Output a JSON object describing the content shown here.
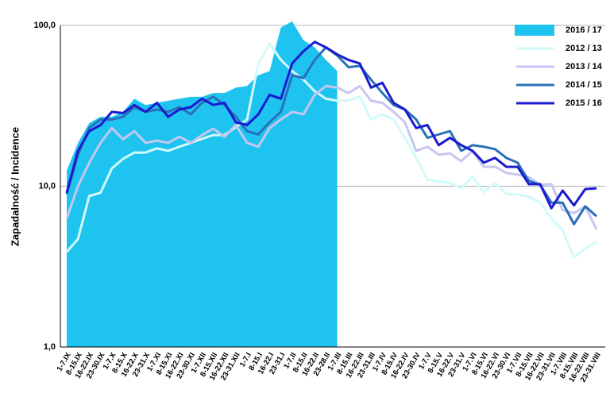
{
  "chart_data": {
    "type": "line",
    "log_y": true,
    "grid": true,
    "legend": "top-right",
    "ylabel": "Zapadalność  /  Incidence",
    "ylim": [
      1,
      100
    ],
    "yticks": [
      {
        "value": 1,
        "label": "1,0"
      },
      {
        "value": 10,
        "label": "10,0"
      },
      {
        "value": 100,
        "label": "100,0"
      }
    ],
    "categories": [
      "1-7.IX",
      "8-15.IX",
      "16-22.IX",
      "23-30.IX",
      "1-7.X",
      "8-15.X",
      "16-22.X",
      "23-31.X",
      "1-7.XI",
      "8-15.XI",
      "16-22.XI",
      "23-30.XI",
      "1-7.XII",
      "8-15.XII",
      "16-22.XII",
      "23-31.XII",
      "1-7.I",
      "8-15.I",
      "16-22.I",
      "23-31.I",
      "1-7.II",
      "8-15.II",
      "16-22.II",
      "23-28.II",
      "1-7.III",
      "8-15.III",
      "16-22.III",
      "23-31.III",
      "1-7.IV",
      "8-15.IV",
      "16-22.IV",
      "23-30.IV",
      "1-7.V",
      "8-15.V",
      "16-22.V",
      "23-31.V",
      "1-7.VI",
      "8-15.VI",
      "16-22.VI",
      "23-30.VI",
      "1-7.VII",
      "8-15.VII",
      "16-22.VII",
      "23-31.VII",
      "1-7.VIII",
      "8-15.VIII",
      "16-22.VIII",
      "23-31.VIII"
    ],
    "series": [
      {
        "name": "2016 / 17",
        "kind": "area",
        "color": "#1ec3f0",
        "values": [
          12.5,
          18.6,
          24.7,
          27,
          27,
          29,
          35,
          32,
          33,
          34,
          35,
          36,
          36,
          38,
          38,
          41,
          42,
          49,
          52,
          97,
          106,
          81,
          73,
          61,
          52,
          null,
          null,
          null,
          null,
          null,
          null,
          null,
          null,
          null,
          null,
          null,
          null,
          null,
          null,
          null,
          null,
          null,
          null,
          null,
          null,
          null,
          null,
          null
        ]
      },
      {
        "name": "2012 / 13",
        "kind": "line",
        "color": "#d2fafa",
        "values": [
          3.9,
          4.7,
          8.7,
          9.1,
          12.9,
          14.8,
          16.2,
          16.2,
          17.2,
          16.6,
          17.6,
          18.6,
          19.7,
          20.8,
          20.8,
          23.3,
          26,
          58,
          77,
          61,
          52,
          46,
          39,
          35,
          34,
          34,
          36,
          26,
          28,
          26,
          20,
          15,
          11,
          10.7,
          10.5,
          9.7,
          11.5,
          9.2,
          10.5,
          8.9,
          8.9,
          8.6,
          7.9,
          6.3,
          5.3,
          3.6,
          4.1,
          4.5
        ]
      },
      {
        "name": "2013 / 14",
        "kind": "line",
        "color": "#c6c6f0",
        "values": [
          6.3,
          10,
          14,
          18.6,
          23,
          19.6,
          22,
          18.6,
          19.2,
          18.6,
          20.3,
          18.6,
          20.8,
          22.8,
          20.3,
          24,
          18.6,
          17.6,
          23,
          26,
          29,
          28,
          37,
          42,
          41,
          38,
          42,
          34,
          33,
          29,
          25,
          16.6,
          17.6,
          15.7,
          16,
          14.3,
          16.6,
          13.2,
          13.2,
          12.1,
          11.8,
          11.4,
          10.2,
          10.3,
          7.1,
          6.8,
          7.5,
          5.4
        ]
      },
      {
        "name": "2014 / 15",
        "kind": "line",
        "color": "#2a70b8",
        "values": [
          8.9,
          15.7,
          23,
          26,
          26,
          27,
          31,
          29,
          30,
          29,
          31,
          28,
          33,
          36,
          32,
          27,
          22,
          21,
          25,
          29,
          49,
          47,
          61,
          73,
          65,
          55,
          56,
          46,
          38,
          32,
          30,
          26,
          20,
          21,
          22,
          16.6,
          18,
          17.6,
          17,
          15,
          14,
          10.8,
          10.2,
          7.9,
          7.9,
          5.8,
          7.5,
          6.5
        ]
      },
      {
        "name": "2015 / 16",
        "kind": "line",
        "color": "#1a1ad0",
        "values": [
          9.1,
          16.6,
          22,
          24,
          29,
          28.5,
          32,
          29,
          33,
          27,
          30,
          31,
          35,
          32,
          33,
          25,
          24,
          28,
          37,
          35,
          58,
          69,
          79,
          73,
          66,
          61,
          58,
          41,
          44,
          33,
          30,
          23,
          24,
          18,
          20,
          18,
          16.6,
          14,
          15,
          13.2,
          13.2,
          10.3,
          10.3,
          7.3,
          9.4,
          7.6,
          9.6,
          9.7
        ]
      }
    ]
  }
}
